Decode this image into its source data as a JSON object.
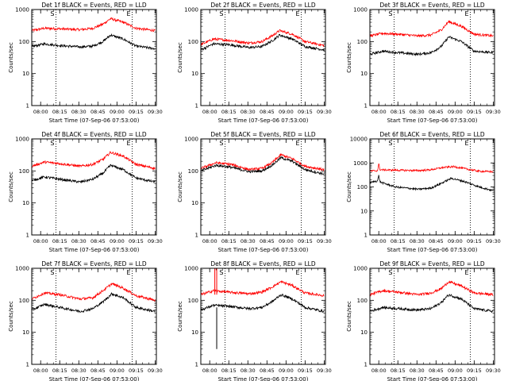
{
  "chart_data": [
    {
      "type": "line",
      "title": "Det 1f BLACK = Events, RED = LLD",
      "xlabel": "Start Time (07-Sep-06 07:53:00)",
      "ylabel": "Counts/sec",
      "yscale": "log",
      "ylim": [
        1,
        1000
      ],
      "ytick_labels": [
        "1",
        "10",
        "100",
        "1000"
      ],
      "xtick_labels": [
        "08:00",
        "08:15",
        "08:30",
        "08:45",
        "09:00",
        "09:15",
        "09:30"
      ],
      "markers": [
        {
          "label": "S",
          "time": "08:12"
        },
        {
          "label": "E",
          "time": "09:12"
        }
      ],
      "series": [
        {
          "color": "#ff0000",
          "values": [
            [
              0,
              220
            ],
            [
              10,
              260
            ],
            [
              22,
              250
            ],
            [
              38,
              235
            ],
            [
              48,
              260
            ],
            [
              56,
              350
            ],
            [
              62,
              520
            ],
            [
              72,
              400
            ],
            [
              82,
              260
            ],
            [
              97,
              220
            ]
          ]
        },
        {
          "color": "#000000",
          "values": [
            [
              0,
              70
            ],
            [
              10,
              85
            ],
            [
              22,
              75
            ],
            [
              38,
              68
            ],
            [
              48,
              72
            ],
            [
              56,
              100
            ],
            [
              62,
              160
            ],
            [
              72,
              120
            ],
            [
              82,
              72
            ],
            [
              97,
              60
            ]
          ]
        }
      ]
    },
    {
      "type": "line",
      "title": "Det 2f BLACK = Events, RED = LLD",
      "xlabel": "Start Time (07-Sep-06 07:53:00)",
      "ylabel": "Counts/sec",
      "yscale": "log",
      "ylim": [
        1,
        1000
      ],
      "ytick_labels": [
        "1",
        "10",
        "100",
        "1000"
      ],
      "xtick_labels": [
        "08:00",
        "08:15",
        "08:30",
        "08:45",
        "09:00",
        "09:15",
        "09:30"
      ],
      "markers": [
        {
          "label": "S",
          "time": "08:12"
        },
        {
          "label": "E",
          "time": "09:12"
        }
      ],
      "series": [
        {
          "color": "#ff0000",
          "values": [
            [
              0,
              80
            ],
            [
              10,
              120
            ],
            [
              22,
              110
            ],
            [
              38,
              90
            ],
            [
              48,
              100
            ],
            [
              56,
              150
            ],
            [
              62,
              220
            ],
            [
              72,
              170
            ],
            [
              82,
              100
            ],
            [
              97,
              75
            ]
          ]
        },
        {
          "color": "#000000",
          "values": [
            [
              0,
              55
            ],
            [
              10,
              85
            ],
            [
              22,
              80
            ],
            [
              38,
              65
            ],
            [
              48,
              70
            ],
            [
              56,
              105
            ],
            [
              62,
              160
            ],
            [
              72,
              120
            ],
            [
              82,
              70
            ],
            [
              97,
              55
            ]
          ]
        }
      ]
    },
    {
      "type": "line",
      "title": "Det 3f BLACK = Events, RED = LLD",
      "xlabel": "Start Time (07-Sep-06 07:53:00)",
      "ylabel": "Counts/sec",
      "yscale": "log",
      "ylim": [
        1,
        1000
      ],
      "ytick_labels": [
        "1",
        "10",
        "100",
        "1000"
      ],
      "xtick_labels": [
        "08:00",
        "08:15",
        "08:30",
        "08:45",
        "09:00",
        "09:15",
        "09:30"
      ],
      "markers": [
        {
          "label": "S",
          "time": "08:12"
        },
        {
          "label": "E",
          "time": "09:12"
        }
      ],
      "series": [
        {
          "color": "#ff0000",
          "values": [
            [
              0,
              150
            ],
            [
              10,
              180
            ],
            [
              22,
              170
            ],
            [
              38,
              150
            ],
            [
              48,
              160
            ],
            [
              56,
              230
            ],
            [
              62,
              420
            ],
            [
              72,
              300
            ],
            [
              82,
              170
            ],
            [
              97,
              150
            ]
          ]
        },
        {
          "color": "#000000",
          "values": [
            [
              0,
              40
            ],
            [
              10,
              50
            ],
            [
              22,
              45
            ],
            [
              38,
              40
            ],
            [
              48,
              45
            ],
            [
              56,
              70
            ],
            [
              62,
              140
            ],
            [
              72,
              100
            ],
            [
              82,
              50
            ],
            [
              97,
              45
            ]
          ]
        }
      ]
    },
    {
      "type": "line",
      "title": "Det 4f BLACK = Events, RED = LLD",
      "xlabel": "Start Time (07-Sep-06 07:53:00)",
      "ylabel": "Counts/sec",
      "yscale": "log",
      "ylim": [
        1,
        1000
      ],
      "ytick_labels": [
        "1",
        "10",
        "100",
        "1000"
      ],
      "xtick_labels": [
        "08:00",
        "08:15",
        "08:30",
        "08:45",
        "09:00",
        "09:15",
        "09:30"
      ],
      "markers": [
        {
          "label": "S",
          "time": "08:12"
        },
        {
          "label": "E",
          "time": "09:12"
        }
      ],
      "series": [
        {
          "color": "#ff0000",
          "values": [
            [
              0,
              140
            ],
            [
              10,
              190
            ],
            [
              22,
              170
            ],
            [
              38,
              140
            ],
            [
              48,
              160
            ],
            [
              56,
              230
            ],
            [
              62,
              380
            ],
            [
              72,
              290
            ],
            [
              82,
              160
            ],
            [
              97,
              120
            ]
          ]
        },
        {
          "color": "#000000",
          "values": [
            [
              0,
              50
            ],
            [
              10,
              65
            ],
            [
              22,
              55
            ],
            [
              38,
              45
            ],
            [
              48,
              55
            ],
            [
              56,
              85
            ],
            [
              62,
              150
            ],
            [
              72,
              110
            ],
            [
              82,
              60
            ],
            [
              97,
              45
            ]
          ]
        }
      ]
    },
    {
      "type": "line",
      "title": "Det 5f BLACK = Events, RED = LLD",
      "xlabel": "Start Time (07-Sep-06 07:53:00)",
      "ylabel": "Counts/sec",
      "yscale": "log",
      "ylim": [
        1,
        1000
      ],
      "ytick_labels": [
        "1",
        "10",
        "100",
        "1000"
      ],
      "xtick_labels": [
        "08:00",
        "08:15",
        "08:30",
        "08:45",
        "09:00",
        "09:15",
        "09:30"
      ],
      "markers": [
        {
          "label": "S",
          "time": "08:12"
        },
        {
          "label": "E",
          "time": "09:12"
        }
      ],
      "series": [
        {
          "color": "#ff0000",
          "values": [
            [
              0,
              120
            ],
            [
              12,
              180
            ],
            [
              24,
              160
            ],
            [
              38,
              110
            ],
            [
              48,
              120
            ],
            [
              56,
              180
            ],
            [
              63,
              320
            ],
            [
              72,
              240
            ],
            [
              82,
              140
            ],
            [
              97,
              110
            ]
          ]
        },
        {
          "color": "#000000",
          "values": [
            [
              0,
              100
            ],
            [
              12,
              150
            ],
            [
              24,
              130
            ],
            [
              38,
              95
            ],
            [
              48,
              100
            ],
            [
              56,
              150
            ],
            [
              63,
              260
            ],
            [
              72,
              200
            ],
            [
              82,
              110
            ],
            [
              97,
              80
            ]
          ]
        }
      ]
    },
    {
      "type": "line",
      "title": "Det 6f BLACK = Events, RED = LLD",
      "xlabel": "Start Time (07-Sep-06 07:53:00)",
      "ylabel": "Counts/sec",
      "yscale": "log",
      "ylim": [
        1,
        10000
      ],
      "ytick_labels": [
        "1",
        "10",
        "100",
        "1000",
        "10000"
      ],
      "xtick_labels": [
        "08:00",
        "08:15",
        "08:30",
        "08:45",
        "09:00",
        "09:15",
        "09:30"
      ],
      "markers": [
        {
          "label": "S",
          "time": "08:12"
        },
        {
          "label": "E",
          "time": "09:12"
        }
      ],
      "series": [
        {
          "color": "#ff0000",
          "values": [
            [
              0,
              450
            ],
            [
              6,
              480
            ],
            [
              7,
              900
            ],
            [
              8,
              520
            ],
            [
              20,
              500
            ],
            [
              38,
              480
            ],
            [
              48,
              520
            ],
            [
              58,
              650
            ],
            [
              66,
              700
            ],
            [
              76,
              560
            ],
            [
              86,
              450
            ],
            [
              97,
              430
            ]
          ]
        },
        {
          "color": "#000000",
          "values": [
            [
              0,
              150
            ],
            [
              6,
              180
            ],
            [
              7,
              300
            ],
            [
              8,
              160
            ],
            [
              20,
              100
            ],
            [
              38,
              80
            ],
            [
              48,
              90
            ],
            [
              56,
              140
            ],
            [
              64,
              230
            ],
            [
              74,
              170
            ],
            [
              86,
              100
            ],
            [
              97,
              70
            ]
          ]
        }
      ]
    },
    {
      "type": "line",
      "title": "Det 7f BLACK = Events, RED = LLD",
      "xlabel": "Start Time (07-Sep-06 07:53:00)",
      "ylabel": "Counts/sec",
      "yscale": "log",
      "ylim": [
        1,
        1000
      ],
      "ytick_labels": [
        "1",
        "10",
        "100",
        "1000"
      ],
      "xtick_labels": [
        "08:00",
        "08:15",
        "08:30",
        "08:45",
        "09:00",
        "09:15",
        "09:30"
      ],
      "markers": [
        {
          "label": "S",
          "time": "08:12"
        },
        {
          "label": "E",
          "time": "09:12"
        }
      ],
      "series": [
        {
          "color": "#ff0000",
          "values": [
            [
              0,
              110
            ],
            [
              10,
              170
            ],
            [
              22,
              150
            ],
            [
              38,
              110
            ],
            [
              48,
              120
            ],
            [
              56,
              200
            ],
            [
              63,
              330
            ],
            [
              72,
              240
            ],
            [
              82,
              140
            ],
            [
              97,
              100
            ]
          ]
        },
        {
          "color": "#000000",
          "values": [
            [
              0,
              50
            ],
            [
              10,
              75
            ],
            [
              22,
              60
            ],
            [
              38,
              45
            ],
            [
              48,
              55
            ],
            [
              56,
              90
            ],
            [
              63,
              160
            ],
            [
              72,
              120
            ],
            [
              82,
              60
            ],
            [
              97,
              45
            ]
          ]
        }
      ]
    },
    {
      "type": "line",
      "title": "Det 8f BLACK = Events, RED = LLD",
      "xlabel": "Start Time (07-Sep-06 07:53:00)",
      "ylabel": "Counts/sec",
      "yscale": "log",
      "ylim": [
        1,
        1000
      ],
      "ytick_labels": [
        "1",
        "10",
        "100",
        "1000"
      ],
      "xtick_labels": [
        "08:00",
        "08:15",
        "08:30",
        "08:45",
        "09:00",
        "09:15",
        "09:30"
      ],
      "markers": [
        {
          "label": "S",
          "time": "08:12"
        },
        {
          "label": "E",
          "time": "09:12"
        }
      ],
      "spikes": [
        {
          "color": "#ff0000",
          "x": 11,
          "ymin": 150,
          "ymax": 1000
        },
        {
          "color": "#ff0000",
          "x": 12.5,
          "ymin": 150,
          "ymax": 1000
        },
        {
          "color": "#000000",
          "x": 12.5,
          "ymin": 3,
          "ymax": 60
        }
      ],
      "series": [
        {
          "color": "#ff0000",
          "values": [
            [
              0,
              150
            ],
            [
              10,
              200
            ],
            [
              22,
              180
            ],
            [
              38,
              160
            ],
            [
              48,
              180
            ],
            [
              56,
              260
            ],
            [
              63,
              380
            ],
            [
              72,
              290
            ],
            [
              82,
              170
            ],
            [
              97,
              140
            ]
          ]
        },
        {
          "color": "#000000",
          "values": [
            [
              0,
              50
            ],
            [
              10,
              70
            ],
            [
              22,
              65
            ],
            [
              38,
              55
            ],
            [
              48,
              60
            ],
            [
              56,
              90
            ],
            [
              63,
              150
            ],
            [
              72,
              110
            ],
            [
              82,
              60
            ],
            [
              97,
              45
            ]
          ]
        }
      ]
    },
    {
      "type": "line",
      "title": "Det 9f BLACK = Events, RED = LLD",
      "xlabel": "Start Time (07-Sep-06 07:53:00)",
      "ylabel": "Counts/sec",
      "yscale": "log",
      "ylim": [
        1,
        1000
      ],
      "ytick_labels": [
        "1",
        "10",
        "100",
        "1000"
      ],
      "xtick_labels": [
        "08:00",
        "08:15",
        "08:30",
        "08:45",
        "09:00",
        "09:15",
        "09:30"
      ],
      "markers": [
        {
          "label": "S",
          "time": "08:12"
        },
        {
          "label": "E",
          "time": "09:12"
        }
      ],
      "series": [
        {
          "color": "#ff0000",
          "values": [
            [
              0,
              150
            ],
            [
              10,
              200
            ],
            [
              22,
              180
            ],
            [
              38,
              150
            ],
            [
              48,
              170
            ],
            [
              56,
              230
            ],
            [
              62,
              380
            ],
            [
              72,
              280
            ],
            [
              82,
              170
            ],
            [
              97,
              150
            ]
          ]
        },
        {
          "color": "#000000",
          "values": [
            [
              0,
              45
            ],
            [
              10,
              60
            ],
            [
              22,
              55
            ],
            [
              38,
              50
            ],
            [
              48,
              55
            ],
            [
              56,
              85
            ],
            [
              62,
              150
            ],
            [
              72,
              110
            ],
            [
              82,
              55
            ],
            [
              97,
              45
            ]
          ]
        }
      ]
    }
  ]
}
